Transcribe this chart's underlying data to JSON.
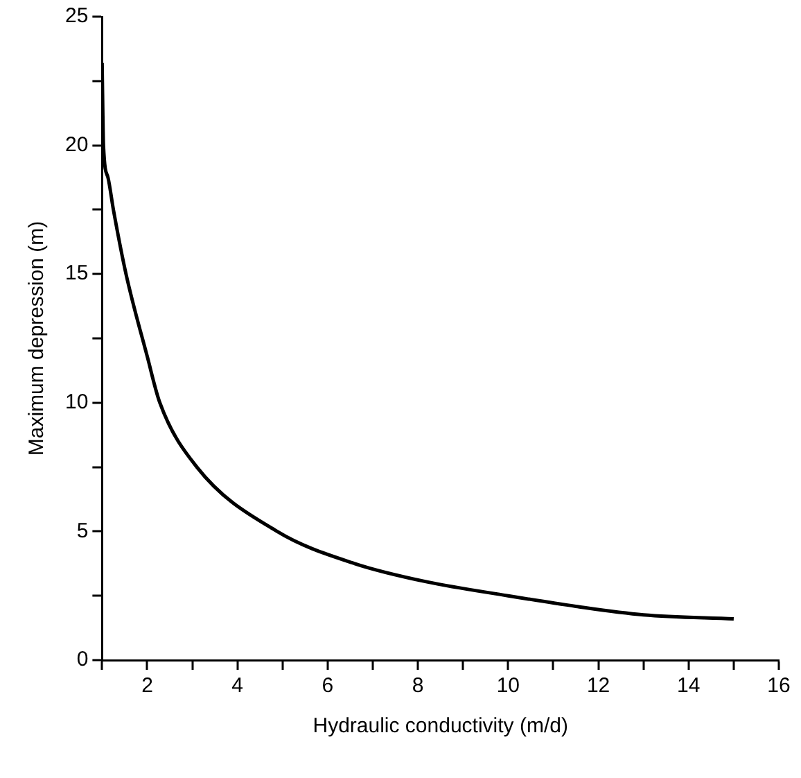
{
  "chart_data": {
    "type": "line",
    "xlabel": "Hydraulic conductivity (m/d)",
    "ylabel": "Maximum depression (m)",
    "xlim": [
      1,
      16
    ],
    "ylim": [
      0,
      25
    ],
    "xticks": [
      {
        "value": 1,
        "label": null
      },
      2,
      {
        "value": 3,
        "label": null
      },
      4,
      {
        "value": 5,
        "label": null
      },
      6,
      {
        "value": 7,
        "label": null
      },
      8,
      {
        "value": 9,
        "label": null
      },
      10,
      {
        "value": 11,
        "label": null
      },
      12,
      {
        "value": 13,
        "label": null
      },
      14,
      {
        "value": 15,
        "label": null
      },
      16
    ],
    "yticks": [
      0,
      {
        "value": 2.5,
        "label": null
      },
      5,
      {
        "value": 7.5,
        "label": null
      },
      10,
      {
        "value": 12.5,
        "label": null
      },
      15,
      {
        "value": 17.5,
        "label": null
      },
      20,
      {
        "value": 22.5,
        "label": null
      },
      25
    ],
    "grid": false,
    "legend": false,
    "marker": "none",
    "line_style": "solid",
    "series": [
      {
        "color": "#000000",
        "x": [
          1,
          1.03,
          1.13,
          1.25,
          1.53,
          2,
          2.28,
          3.1,
          4.88,
          6.6,
          8.2,
          10,
          11.5,
          13,
          15
        ],
        "values": [
          23.2,
          20,
          18.75,
          17.5,
          15,
          11.8,
          10,
          7.5,
          5,
          3.75,
          3.04,
          2.5,
          2.09,
          1.76,
          1.6
        ]
      }
    ]
  }
}
